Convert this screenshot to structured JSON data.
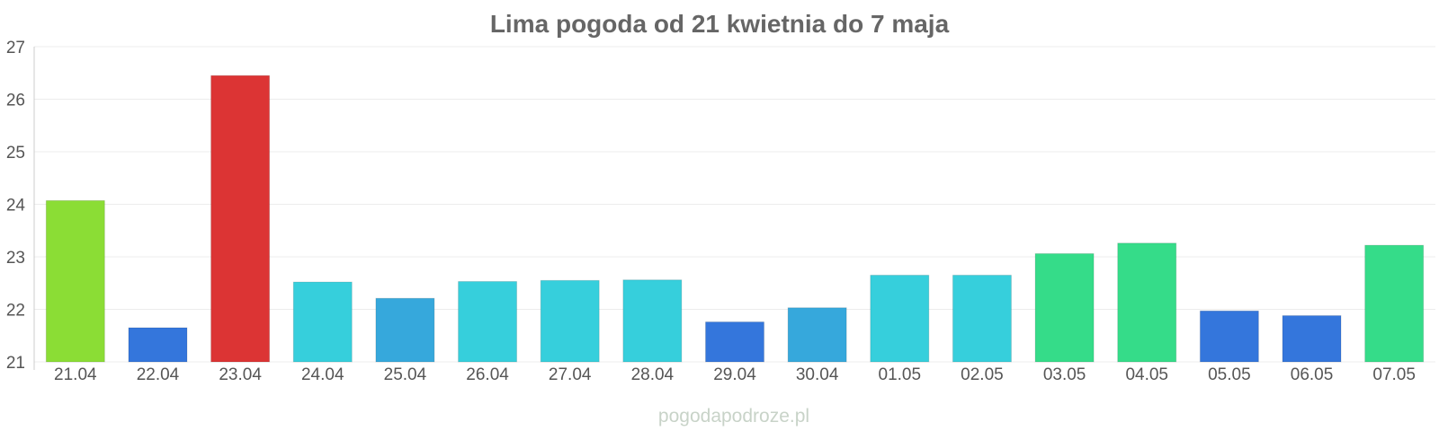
{
  "chart_data": {
    "type": "bar",
    "title": "Lima pogoda od 21 kwietnia do 7 maja",
    "xlabel": "",
    "ylabel": "",
    "categories": [
      "21.04",
      "22.04",
      "23.04",
      "24.04",
      "25.04",
      "26.04",
      "27.04",
      "28.04",
      "29.04",
      "30.04",
      "01.05",
      "02.05",
      "03.05",
      "04.05",
      "05.05",
      "06.05",
      "07.05"
    ],
    "values": [
      24.07,
      21.65,
      26.45,
      22.52,
      22.21,
      22.53,
      22.55,
      22.56,
      21.76,
      22.03,
      22.65,
      22.65,
      23.06,
      23.26,
      21.97,
      21.88,
      23.22
    ],
    "bar_colors": [
      "#8bdd35",
      "#3476dc",
      "#dc3434",
      "#36cfdc",
      "#36a8dc",
      "#36cfdc",
      "#36cfdc",
      "#36cfdc",
      "#3476dc",
      "#36a8dc",
      "#36cfdc",
      "#36cfdc",
      "#35dc89",
      "#35dc89",
      "#3476dc",
      "#3476dc",
      "#35dc89"
    ],
    "ylim": [
      21,
      27
    ],
    "yticks": [
      "21",
      "22",
      "23",
      "24",
      "25",
      "26",
      "27"
    ],
    "grid": true,
    "legend": "none"
  },
  "watermark": "pogodapodroze.pl"
}
